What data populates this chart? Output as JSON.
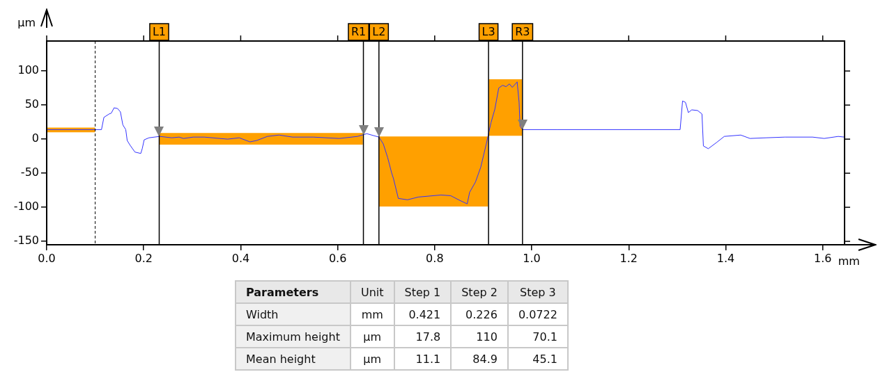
{
  "chart_data": [
    {
      "type": "line",
      "xlabel": "mm",
      "ylabel": "µm",
      "xlim": [
        0,
        1.645
      ],
      "ylim": [
        -155,
        144
      ],
      "xticks": [
        {
          "value": 0,
          "label": "0.0"
        },
        {
          "value": 0.2,
          "label": "0.2"
        },
        {
          "value": 0.4,
          "label": "0.4"
        },
        {
          "value": 0.6,
          "label": "0.6"
        },
        {
          "value": 0.8,
          "label": "0.8"
        },
        {
          "value": 1,
          "label": "1.0"
        },
        {
          "value": 1.2,
          "label": "1.2"
        },
        {
          "value": 1.4,
          "label": "1.4"
        },
        {
          "value": 1.6,
          "label": "1.6"
        }
      ],
      "yticks": [
        -150,
        -100,
        -50,
        0,
        50,
        100
      ],
      "series": [
        {
          "type": "histogram",
          "color": "#ffa000",
          "bins": [
            0,
            0.1
          ],
          "base": [
            10
          ],
          "values": [
            7
          ]
        },
        {
          "type": "histogram",
          "color": "#ffa000",
          "bins": [
            0.232,
            0.652
          ],
          "base": [
            -8
          ],
          "values": [
            17
          ]
        },
        {
          "type": "histogram",
          "color": "#ffa000",
          "bins": [
            0.685,
            0.91
          ],
          "base": [
            -99
          ],
          "values": [
            103
          ]
        },
        {
          "type": "histogram",
          "color": "#ffa000",
          "bins": [
            0.911,
            0.98
          ],
          "base": [
            5
          ],
          "values": [
            83
          ]
        },
        {
          "color": "#3333ff",
          "x": [
            0,
            0.1,
            0.113,
            0.118,
            0.129,
            0.133,
            0.139,
            0.146,
            0.152,
            0.157,
            0.163,
            0.166,
            0.172,
            0.182,
            0.194,
            0.197,
            0.201,
            0.211,
            0.233,
            0.258,
            0.273,
            0.282,
            0.302,
            0.325,
            0.373,
            0.397,
            0.419,
            0.433,
            0.455,
            0.479,
            0.507,
            0.55,
            0.603,
            0.641,
            0.66,
            0.685,
            0.694,
            0.703,
            0.711,
            0.715,
            0.725,
            0.744,
            0.766,
            0.813,
            0.833,
            0.852,
            0.867,
            0.872,
            0.884,
            0.895,
            0.907,
            0.912,
            0.916,
            0.924,
            0.932,
            0.94,
            0.947,
            0.954,
            0.96,
            0.97,
            0.974,
            0.976,
            0.981,
            1.053,
            1.306,
            1.311,
            1.317,
            1.323,
            1.33,
            1.342,
            1.351,
            1.354,
            1.364,
            1.381,
            1.397,
            1.431,
            1.45,
            1.484,
            1.522,
            1.579,
            1.603,
            1.632,
            1.645
          ],
          "values": [
            14,
            14,
            14,
            32,
            37,
            38,
            46,
            45,
            40,
            21,
            14,
            -2,
            -9,
            -19,
            -21,
            -14,
            -1,
            2,
            4,
            2,
            3,
            1,
            3,
            3,
            0,
            2,
            -4,
            -2,
            4,
            6,
            3,
            3,
            1,
            4,
            8,
            3,
            -7,
            -27,
            -49,
            -58,
            -87,
            -89,
            -85,
            -82,
            -83,
            -90,
            -95,
            -78,
            -63,
            -41,
            -5,
            null,
            24,
            44,
            75,
            79,
            77,
            81,
            76,
            84,
            54,
            19,
            14,
            14,
            14,
            56,
            54,
            39,
            43,
            42,
            37,
            -10,
            -14,
            -5,
            4,
            6,
            1,
            2,
            3,
            3,
            1,
            4,
            3
          ]
        }
      ],
      "ref_lines": [
        {
          "axis": "x",
          "value": 0.1,
          "line_style": "dashed",
          "color": "#000000"
        },
        {
          "axis": "x",
          "value": 0.232,
          "label": "L1",
          "color": "#000000"
        },
        {
          "axis": "x",
          "value": 0.653,
          "label": "R1",
          "color": "#000000"
        },
        {
          "axis": "x",
          "value": 0.685,
          "label": "L2",
          "color": "#000000"
        },
        {
          "axis": "x",
          "value": 0.911,
          "label": "L3",
          "color": "#000000"
        },
        {
          "axis": "x",
          "value": 0.981,
          "label": "R3",
          "color": "#000000"
        }
      ]
    },
    {
      "type": "other",
      "title": "Parameters",
      "categories": [
        "Unit",
        "Step 1",
        "Step 2",
        "Step 3"
      ],
      "y_categories": [
        "Width",
        "Maximum height",
        "Mean height"
      ],
      "cell_labels": [
        [
          "mm",
          "0.421",
          "0.226",
          "0.0722"
        ],
        [
          "µm",
          "17.8",
          "110",
          "70.1"
        ],
        [
          "µm",
          "11.1",
          "84.9",
          "45.1"
        ]
      ]
    }
  ]
}
